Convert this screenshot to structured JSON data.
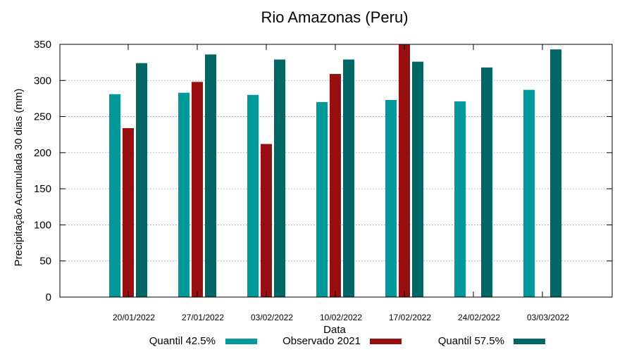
{
  "chart_data": {
    "type": "bar",
    "title": "Rio Amazonas (Peru)",
    "xlabel": "Data",
    "ylabel": "Precipitação Acumulada 30 dias (mm)",
    "ylim": [
      0,
      350
    ],
    "yticks": [
      0,
      50,
      100,
      150,
      200,
      250,
      300,
      350
    ],
    "grid": true,
    "legend_position": "bottom",
    "categories": [
      "20/01/2022",
      "27/01/2022",
      "03/02/2022",
      "10/02/2022",
      "17/02/2022",
      "24/02/2022",
      "03/03/2022"
    ],
    "series": [
      {
        "name": "Quantil 42.5%",
        "color": "#009999",
        "values": [
          281,
          283,
          280,
          270,
          273,
          271,
          287
        ]
      },
      {
        "name": "Observado 2021",
        "color": "#990f0f",
        "values": [
          234,
          298,
          212,
          309,
          350,
          null,
          null
        ]
      },
      {
        "name": "Quantil 57.5%",
        "color": "#006666",
        "values": [
          324,
          336,
          329,
          329,
          326,
          318,
          343
        ]
      }
    ]
  }
}
